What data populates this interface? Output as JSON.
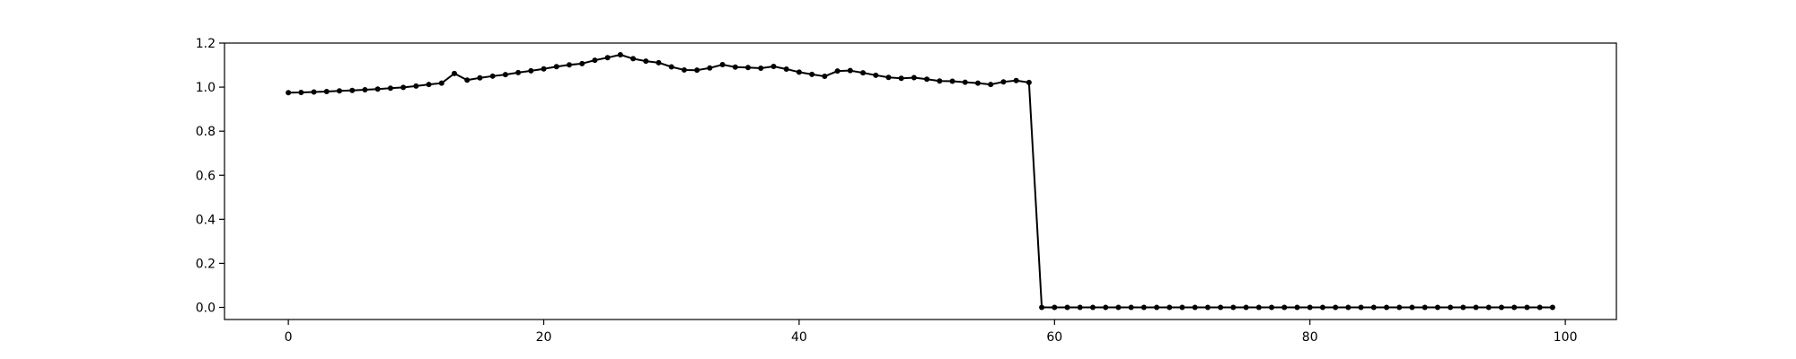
{
  "chart_data": {
    "type": "line",
    "title": "",
    "xlabel": "",
    "ylabel": "",
    "xlim": [
      -5,
      104
    ],
    "ylim": [
      -0.055,
      1.2
    ],
    "x_ticks": [
      0,
      20,
      40,
      60,
      80,
      100
    ],
    "y_ticks": [
      0.0,
      0.2,
      0.4,
      0.6,
      0.8,
      1.0,
      1.2
    ],
    "x_tick_labels": [
      "0",
      "20",
      "40",
      "60",
      "80",
      "100"
    ],
    "y_tick_labels": [
      "0.0",
      "0.2",
      "0.4",
      "0.6",
      "0.8",
      "1.0",
      "1.2"
    ],
    "grid": false,
    "legend": "none",
    "series": [
      {
        "color": "#000000",
        "marker": "dot",
        "x": [
          0,
          1,
          2,
          3,
          4,
          5,
          6,
          7,
          8,
          9,
          10,
          11,
          12,
          13,
          14,
          15,
          16,
          17,
          18,
          19,
          20,
          21,
          22,
          23,
          24,
          25,
          26,
          27,
          28,
          29,
          30,
          31,
          32,
          33,
          34,
          35,
          36,
          37,
          38,
          39,
          40,
          41,
          42,
          43,
          44,
          45,
          46,
          47,
          48,
          49,
          50,
          51,
          52,
          53,
          54,
          55,
          56,
          57,
          58,
          59,
          60,
          61,
          62,
          63,
          64,
          65,
          66,
          67,
          68,
          69,
          70,
          71,
          72,
          73,
          74,
          75,
          76,
          77,
          78,
          79,
          80,
          81,
          82,
          83,
          84,
          85,
          86,
          87,
          88,
          89,
          90,
          91,
          92,
          93,
          94,
          95,
          96,
          97,
          98,
          99
        ],
        "y": [
          0.975,
          0.976,
          0.978,
          0.98,
          0.983,
          0.985,
          0.988,
          0.991,
          0.995,
          0.999,
          1.005,
          1.012,
          1.018,
          1.062,
          1.032,
          1.042,
          1.05,
          1.057,
          1.066,
          1.074,
          1.083,
          1.093,
          1.101,
          1.107,
          1.122,
          1.134,
          1.147,
          1.129,
          1.118,
          1.111,
          1.092,
          1.078,
          1.077,
          1.087,
          1.102,
          1.091,
          1.089,
          1.086,
          1.094,
          1.082,
          1.068,
          1.058,
          1.049,
          1.073,
          1.075,
          1.065,
          1.054,
          1.044,
          1.04,
          1.043,
          1.036,
          1.028,
          1.027,
          1.022,
          1.018,
          1.012,
          1.024,
          1.03,
          1.021,
          0,
          0,
          0,
          0,
          0,
          0,
          0,
          0,
          0,
          0,
          0,
          0,
          0,
          0,
          0,
          0,
          0,
          0,
          0,
          0,
          0,
          0,
          0,
          0,
          0,
          0,
          0,
          0,
          0,
          0,
          0,
          0,
          0,
          0,
          0,
          0,
          0,
          0,
          0,
          0,
          0
        ]
      }
    ]
  }
}
